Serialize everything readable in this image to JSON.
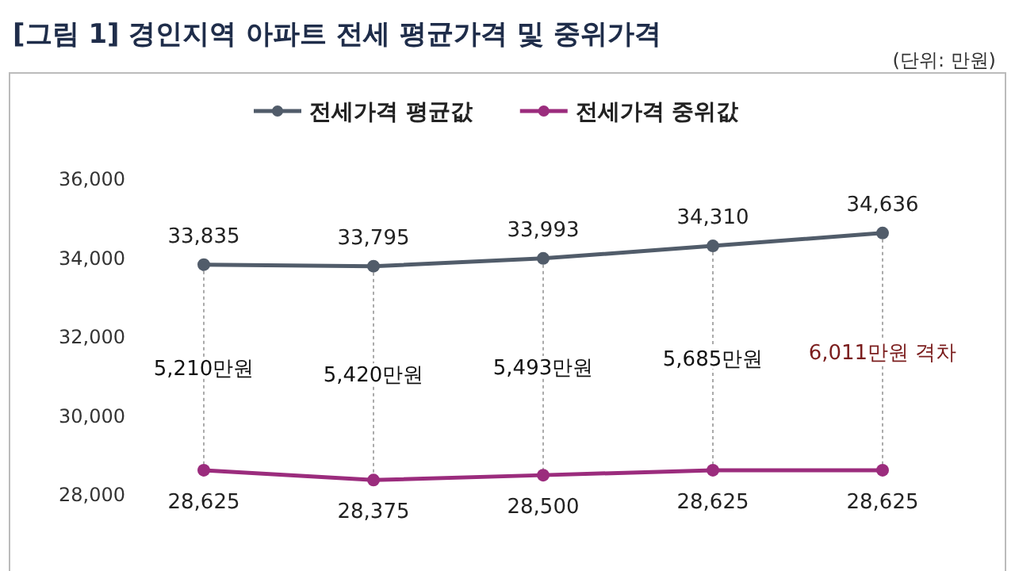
{
  "chart_data": {
    "type": "line",
    "title": "[그림 1] 경인지역 아파트 전세 평균가격 및 중위가격",
    "categories": [
      null,
      null,
      null,
      null,
      null
    ],
    "series": [
      {
        "name": "전세가격 평균값",
        "color": "#515c6a",
        "values": [
          33835,
          33795,
          33993,
          34310,
          34636
        ],
        "value_labels": [
          "33,835",
          "33,795",
          "33,993",
          "34,310",
          "34,636"
        ]
      },
      {
        "name": "전세가격 중위값",
        "color": "#9b2c7d",
        "values": [
          28625,
          28375,
          28500,
          28625,
          28625
        ],
        "value_labels": [
          "28,625",
          "28,375",
          "28,500",
          "28,625",
          "28,625"
        ]
      }
    ],
    "ylim": [
      28000,
      36000
    ],
    "yticks": [
      {
        "value": 28000,
        "label": "28,000"
      },
      {
        "value": 30000,
        "label": "30,000"
      },
      {
        "value": 32000,
        "label": "32,000"
      },
      {
        "value": 34000,
        "label": "34,000"
      },
      {
        "value": 36000,
        "label": "36,000"
      }
    ],
    "marker": "circle",
    "line_style": "solid",
    "legend": "top",
    "grid": false,
    "annotations": [
      "(단위: 만원)",
      "5,210만원",
      "5,420만원",
      "5,493만원",
      "5,685만원",
      "6,011만원 격차"
    ]
  }
}
